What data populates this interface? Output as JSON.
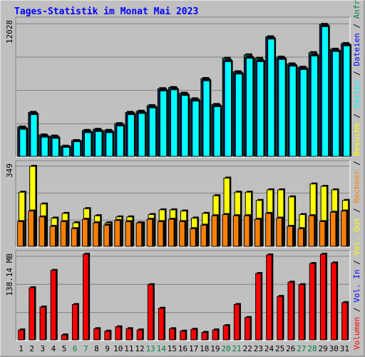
{
  "chart_data": {
    "type": "bar",
    "title": "Tages-Statistik im Monat Mai 2023",
    "colors": {
      "background": "#c0c0c0",
      "frame_dark": "#808080",
      "frame_light": "#ffffff",
      "grid": "#808080",
      "title": "#0000ff",
      "anfragen": "#008040",
      "dateien": "#0000ff",
      "seiten": "#00ffff",
      "besuche": "#ffff00",
      "rechner": "#ff8000",
      "vol_out": "#ffff00",
      "vol_in": "#0000ff",
      "volumen": "#ff0000",
      "day_default": "#000000",
      "day_weekend": "#008040"
    },
    "days": [
      "1",
      "2",
      "3",
      "4",
      "5",
      "6",
      "7",
      "8",
      "9",
      "10",
      "11",
      "12",
      "13",
      "14",
      "15",
      "16",
      "17",
      "18",
      "19",
      "20",
      "21",
      "22",
      "23",
      "24",
      "25",
      "26",
      "27",
      "28",
      "29",
      "30",
      "31"
    ],
    "weekend_days": [
      "6",
      "7",
      "13",
      "14",
      "20",
      "21",
      "27",
      "28"
    ],
    "charts": [
      {
        "name": "hits",
        "ymax_label": "12028",
        "ymax": 12028,
        "series": [
          {
            "name": "Anfragen",
            "color": "#008040",
            "values": [
              2600,
              3900,
              1900,
              1800,
              900,
              1400,
              2300,
              2400,
              2300,
              2900,
              3900,
              4000,
              4500,
              6000,
              6100,
              5600,
              5100,
              6900,
              4600,
              8700,
              7500,
              9000,
              8700,
              10600,
              8800,
              8200,
              7900,
              9200,
              11700,
              9500,
              10000
            ]
          },
          {
            "name": "Dateien",
            "color": "#0000ff",
            "values": [
              2500,
              3800,
              1800,
              1700,
              850,
              1350,
              2200,
              2300,
              2200,
              2800,
              3800,
              3900,
              4400,
              5900,
              6000,
              5500,
              5000,
              6800,
              4500,
              8500,
              7400,
              8800,
              8500,
              10500,
              8700,
              8100,
              7800,
              9000,
              11600,
              9400,
              9900
            ]
          },
          {
            "name": "Seiten",
            "color": "#00ffff",
            "values": [
              2400,
              3700,
              1700,
              1600,
              800,
              1300,
              2100,
              2200,
              2100,
              2700,
              3700,
              3800,
              4300,
              5800,
              5900,
              5400,
              4900,
              6700,
              4400,
              8400,
              7300,
              8700,
              8400,
              10400,
              8600,
              8000,
              7700,
              8900,
              11500,
              9300,
              9800
            ]
          }
        ]
      },
      {
        "name": "visits",
        "ymax_label": "349",
        "ymax": 349,
        "series": [
          {
            "name": "Besuche",
            "color": "#ffff00",
            "values": [
              230,
              340,
              180,
              120,
              140,
              100,
              160,
              130,
              100,
              125,
              125,
              100,
              135,
              155,
              155,
              150,
              120,
              140,
              215,
              290,
              230,
              230,
              195,
              240,
              240,
              210,
              135,
              265,
              255,
              240,
              195
            ]
          },
          {
            "name": "Rechner",
            "color": "#ff8000",
            "values": [
              105,
              150,
              125,
              85,
              105,
              75,
              115,
              100,
              90,
              110,
              105,
              100,
              115,
              105,
              115,
              105,
              75,
              90,
              130,
              135,
              130,
              130,
              115,
              140,
              120,
              85,
              75,
              130,
              105,
              145,
              150
            ]
          }
        ]
      },
      {
        "name": "volume",
        "ymax_label": "138.14 MB",
        "ymax": 138.14,
        "series": [
          {
            "name": "Volumen",
            "color": "#ff0000",
            "values": [
              16,
              84,
              53,
              112,
              8,
              57,
              138,
              18,
              14,
              21,
              18,
              16,
              89,
              51,
              18,
              14,
              17,
              12,
              16,
              23,
              57,
              36,
              107,
              137,
              70,
              93,
              89,
              123,
              138,
              124,
              60
            ]
          }
        ]
      }
    ],
    "side_labels": [
      {
        "text": "Volumen",
        "color": "#ff0000"
      },
      {
        "text": " / ",
        "color": "#000000"
      },
      {
        "text": "Vol. In",
        "color": "#0000ff"
      },
      {
        "text": " / ",
        "color": "#000000"
      },
      {
        "text": "Vol. Out",
        "color": "#ffff00"
      },
      {
        "text": " / ",
        "color": "#000000"
      },
      {
        "text": "Rechner",
        "color": "#ff8000"
      },
      {
        "text": " / ",
        "color": "#000000"
      },
      {
        "text": "Besuche",
        "color": "#ffff00"
      },
      {
        "text": " / ",
        "color": "#000000"
      },
      {
        "text": "Seiten",
        "color": "#00ffff"
      },
      {
        "text": " / ",
        "color": "#000000"
      },
      {
        "text": "Dateien",
        "color": "#0000ff"
      },
      {
        "text": " / ",
        "color": "#000000"
      },
      {
        "text": "Anfragen",
        "color": "#008040"
      }
    ]
  }
}
